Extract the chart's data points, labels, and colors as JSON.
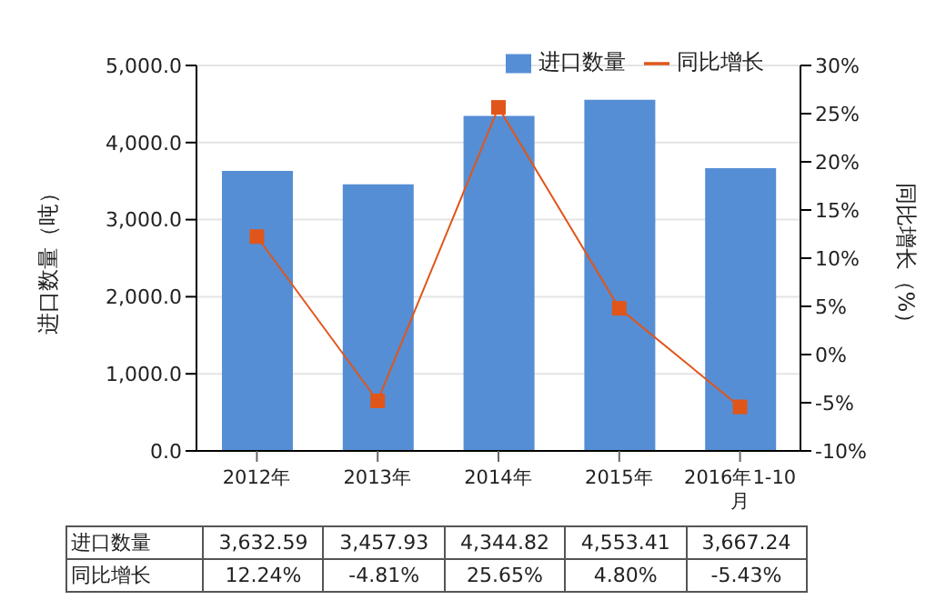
{
  "chart_data": {
    "type": "bar",
    "categories": [
      "2012年",
      "2013年",
      "2014年",
      "2015年",
      "2016年1-10月"
    ],
    "ylabel": "进口数量（吨）",
    "y2label": "同比增长（%）",
    "series": [
      {
        "name": "进口数量",
        "color": "#558ed5",
        "values": [
          3632.59,
          3457.93,
          4344.82,
          4553.41,
          3667.24
        ],
        "value_labels": [
          "3,632.59",
          "3,457.93",
          "4,344.82",
          "4,553.41",
          "3,667.24"
        ]
      },
      {
        "name": "同比增长",
        "type": "line",
        "axis": "y2",
        "color": "#e0561a",
        "marker": "square",
        "line_style": "solid",
        "values": [
          12.24,
          -4.81,
          25.65,
          4.8,
          -5.43
        ],
        "value_labels": [
          "12.24%",
          "-4.81%",
          "25.65%",
          "4.80%",
          "-5.43%"
        ]
      }
    ],
    "ylim": [
      0,
      5000
    ],
    "yticks": [
      {
        "value": 0,
        "label": "0.0"
      },
      {
        "value": 1000,
        "label": "1,000.0"
      },
      {
        "value": 2000,
        "label": "2,000.0"
      },
      {
        "value": 3000,
        "label": "3,000.0"
      },
      {
        "value": 4000,
        "label": "4,000.0"
      },
      {
        "value": 5000,
        "label": "5,000.0"
      }
    ],
    "y2lim": [
      -10,
      30
    ],
    "y2ticks": [
      {
        "value": -10,
        "label": "-10%"
      },
      {
        "value": -5,
        "label": "-5%"
      },
      {
        "value": 0,
        "label": "0%"
      },
      {
        "value": 5,
        "label": "5%"
      },
      {
        "value": 10,
        "label": "10%"
      },
      {
        "value": 15,
        "label": "15%"
      },
      {
        "value": 20,
        "label": "20%"
      },
      {
        "value": 25,
        "label": "25%"
      },
      {
        "value": 30,
        "label": "30%"
      }
    ],
    "grid": "y",
    "legend": "top right"
  }
}
